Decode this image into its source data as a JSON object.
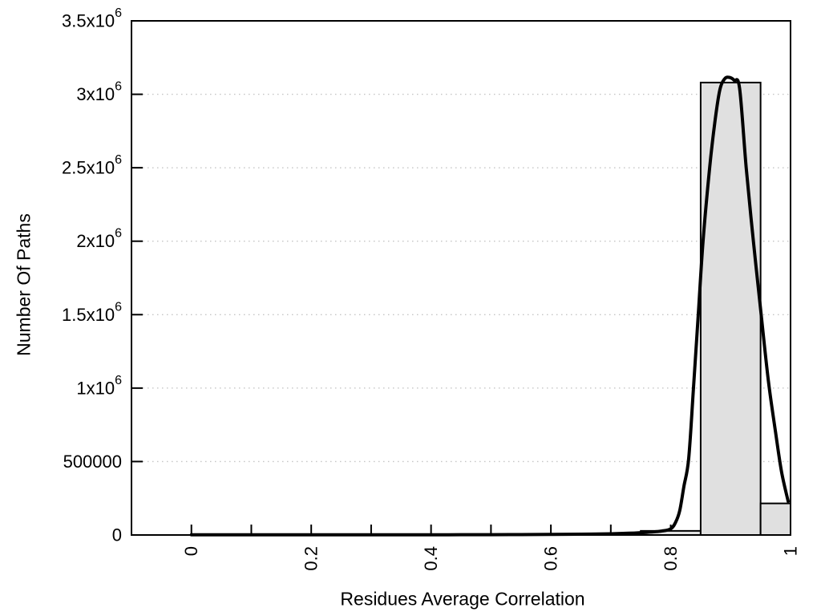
{
  "chart_data": {
    "type": "histogram",
    "title": "",
    "xlabel": "Residues Average Correlation",
    "ylabel": "Number Of Paths",
    "xlim": [
      -0.1,
      1.0
    ],
    "ylim": [
      0,
      3500000
    ],
    "grid": "horizontal-dotted",
    "legend": "none",
    "x_ticks": [
      {
        "value": 0.0,
        "label": "0"
      },
      {
        "value": 0.1,
        "label": ""
      },
      {
        "value": 0.2,
        "label": "0.2"
      },
      {
        "value": 0.3,
        "label": ""
      },
      {
        "value": 0.4,
        "label": "0.4"
      },
      {
        "value": 0.5,
        "label": ""
      },
      {
        "value": 0.6,
        "label": "0.6"
      },
      {
        "value": 0.7,
        "label": ""
      },
      {
        "value": 0.8,
        "label": "0.8"
      },
      {
        "value": 0.9,
        "label": ""
      },
      {
        "value": 1.0,
        "label": "1"
      }
    ],
    "x_tick_label_rotation_deg": -90,
    "y_ticks": [
      {
        "value": 0,
        "label": "0"
      },
      {
        "value": 500000,
        "label": "500000"
      },
      {
        "value": 1000000,
        "label": "1x10^6"
      },
      {
        "value": 1500000,
        "label": "1.5x10^6"
      },
      {
        "value": 2000000,
        "label": "2x10^6"
      },
      {
        "value": 2500000,
        "label": "2.5x10^6"
      },
      {
        "value": 3000000,
        "label": "3x10^6"
      },
      {
        "value": 3500000,
        "label": "3.5x10^6"
      }
    ],
    "bars": [
      {
        "bin_start": 0.75,
        "bin_end": 0.85,
        "count": 28000
      },
      {
        "bin_start": 0.85,
        "bin_end": 0.95,
        "count": 3080000
      },
      {
        "bin_start": 0.95,
        "bin_end": 1.0,
        "count": 215000
      }
    ],
    "fit_curve_points": [
      [
        0.0,
        1500
      ],
      [
        0.05,
        1500
      ],
      [
        0.1,
        1500
      ],
      [
        0.15,
        1500
      ],
      [
        0.2,
        1500
      ],
      [
        0.25,
        1500
      ],
      [
        0.3,
        1500
      ],
      [
        0.35,
        1500
      ],
      [
        0.4,
        1500
      ],
      [
        0.45,
        1800
      ],
      [
        0.5,
        2200
      ],
      [
        0.55,
        2800
      ],
      [
        0.6,
        3800
      ],
      [
        0.65,
        5500
      ],
      [
        0.7,
        8500
      ],
      [
        0.73,
        12000
      ],
      [
        0.76,
        18000
      ],
      [
        0.785,
        27000
      ],
      [
        0.8,
        42000
      ],
      [
        0.808,
        85000
      ],
      [
        0.815,
        165000
      ],
      [
        0.822,
        330000
      ],
      [
        0.83,
        520000
      ],
      [
        0.838,
        1000000
      ],
      [
        0.846,
        1500000
      ],
      [
        0.854,
        2000000
      ],
      [
        0.865,
        2500000
      ],
      [
        0.874,
        2820000
      ],
      [
        0.882,
        3030000
      ],
      [
        0.89,
        3105000
      ],
      [
        0.898,
        3115000
      ],
      [
        0.906,
        3095000
      ],
      [
        0.915,
        3040000
      ],
      [
        0.926,
        2500000
      ],
      [
        0.938,
        2000000
      ],
      [
        0.951,
        1500000
      ],
      [
        0.963,
        1050000
      ],
      [
        0.975,
        700000
      ],
      [
        0.985,
        430000
      ],
      [
        0.996,
        230000
      ]
    ],
    "colors": {
      "background": "#ffffff",
      "bar_fill": "#e0e0e0",
      "bar_border": "#000000",
      "curve": "#000000",
      "grid": "#c4c4c4",
      "axis": "#000000",
      "text": "#000000"
    }
  }
}
